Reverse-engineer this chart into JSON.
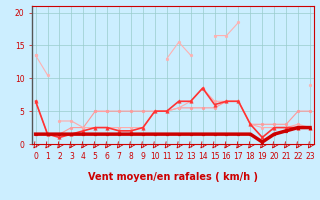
{
  "xlabel": "Vent moyen/en rafales ( km/h )",
  "x": [
    0,
    1,
    2,
    3,
    4,
    5,
    6,
    7,
    8,
    9,
    10,
    11,
    12,
    13,
    14,
    15,
    16,
    17,
    18,
    19,
    20,
    21,
    22,
    23
  ],
  "series": [
    {
      "name": "top_light_pink",
      "color": "#ffb0b0",
      "lw": 0.8,
      "marker": "o",
      "ms": 2.0,
      "y": [
        13.5,
        10.5,
        null,
        null,
        null,
        null,
        null,
        null,
        null,
        null,
        null,
        13.0,
        15.5,
        13.5,
        null,
        16.5,
        16.5,
        18.5,
        null,
        null,
        null,
        null,
        null,
        null
      ]
    },
    {
      "name": "diagonal_light",
      "color": "#ffb0b0",
      "lw": 0.8,
      "marker": "o",
      "ms": 2.0,
      "y": [
        13.5,
        null,
        null,
        null,
        null,
        null,
        null,
        null,
        null,
        null,
        null,
        null,
        null,
        null,
        null,
        null,
        null,
        null,
        null,
        null,
        null,
        null,
        null,
        9.0
      ]
    },
    {
      "name": "mid_light_pink_top",
      "color": "#ffb0b0",
      "lw": 0.8,
      "marker": "o",
      "ms": 2.0,
      "y": [
        null,
        null,
        null,
        null,
        null,
        5.0,
        5.0,
        null,
        null,
        null,
        null,
        null,
        null,
        null,
        null,
        null,
        null,
        null,
        null,
        null,
        null,
        null,
        null,
        null
      ]
    },
    {
      "name": "mid_pink_continuous",
      "color": "#ff9999",
      "lw": 0.8,
      "marker": "o",
      "ms": 2.0,
      "y": [
        6.5,
        1.5,
        1.5,
        2.5,
        2.5,
        5.0,
        5.0,
        5.0,
        5.0,
        5.0,
        5.0,
        5.0,
        5.5,
        5.5,
        5.5,
        5.5,
        6.5,
        6.5,
        3.0,
        3.0,
        3.0,
        3.0,
        5.0,
        5.0
      ]
    },
    {
      "name": "lower_pink",
      "color": "#ffaaaa",
      "lw": 0.8,
      "marker": "o",
      "ms": 2.0,
      "y": [
        null,
        null,
        3.5,
        3.5,
        2.5,
        2.5,
        2.5,
        2.5,
        2.5,
        2.5,
        5.0,
        5.0,
        5.5,
        6.5,
        8.5,
        6.5,
        6.5,
        6.5,
        3.0,
        2.5,
        2.5,
        2.5,
        3.0,
        2.5
      ]
    },
    {
      "name": "gust_red",
      "color": "#ff3333",
      "lw": 1.2,
      "marker": "^",
      "ms": 2.5,
      "y": [
        6.5,
        1.5,
        1.0,
        1.5,
        2.0,
        2.5,
        2.5,
        2.0,
        2.0,
        2.5,
        5.0,
        5.0,
        6.5,
        6.5,
        8.5,
        6.0,
        6.5,
        6.5,
        3.0,
        1.0,
        2.5,
        2.5,
        2.5,
        2.5
      ]
    },
    {
      "name": "mean_wind_thick",
      "color": "#cc0000",
      "lw": 2.5,
      "marker": "^",
      "ms": 2.0,
      "y": [
        1.5,
        1.5,
        1.5,
        1.5,
        1.5,
        1.5,
        1.5,
        1.5,
        1.5,
        1.5,
        1.5,
        1.5,
        1.5,
        1.5,
        1.5,
        1.5,
        1.5,
        1.5,
        1.5,
        0.3,
        1.5,
        2.0,
        2.5,
        2.5
      ]
    }
  ],
  "ylim": [
    0,
    21
  ],
  "yticks": [
    0,
    5,
    10,
    15,
    20
  ],
  "xlim": [
    -0.3,
    23.3
  ],
  "bg_color": "#cceeff",
  "grid_color": "#99cccc",
  "axis_color": "#cc0000",
  "label_color": "#cc0000",
  "xlabel_fontsize": 7,
  "tick_fontsize": 5.5
}
